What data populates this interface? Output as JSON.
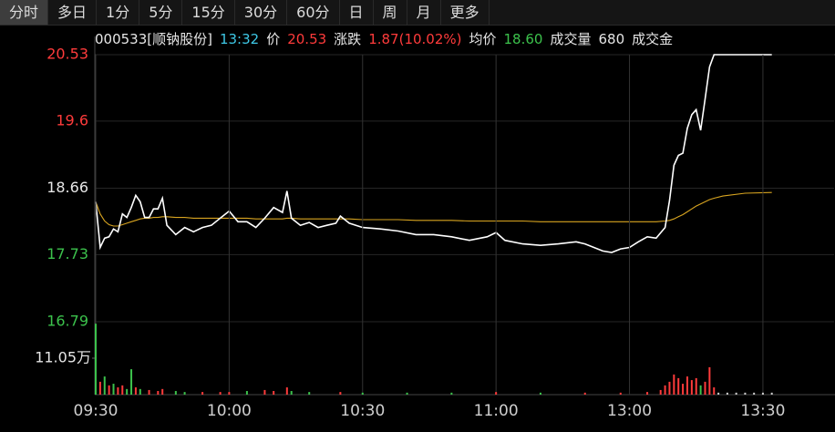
{
  "toolbar": {
    "tabs": [
      "分时",
      "多日",
      "1分",
      "5分",
      "15分",
      "30分",
      "60分",
      "日",
      "周",
      "月",
      "更多"
    ],
    "active": 0
  },
  "info": [
    {
      "text": "000533[顺钠股份]",
      "color": "#e6e6e6"
    },
    {
      "text": "13:32",
      "color": "#3ec8e6"
    },
    {
      "text": "价",
      "color": "#e6e6e6"
    },
    {
      "text": "20.53",
      "color": "#ff3b3b"
    },
    {
      "text": "涨跌",
      "color": "#e6e6e6"
    },
    {
      "text": "1.87(10.02%)",
      "color": "#ff3b3b"
    },
    {
      "text": "均价",
      "color": "#e6e6e6"
    },
    {
      "text": "18.60",
      "color": "#3cc24c"
    },
    {
      "text": "成交量",
      "color": "#e6e6e6"
    },
    {
      "text": "680",
      "color": "#e6e6e6"
    },
    {
      "text": "成交金",
      "color": "#e6e6e6"
    }
  ],
  "chart_data": [
    {
      "type": "line",
      "x": [
        0,
        1,
        2,
        3,
        4,
        5,
        6,
        7,
        8,
        9,
        10,
        11,
        12,
        13,
        14,
        15,
        16,
        18,
        20,
        22,
        24,
        26,
        28,
        30,
        32,
        34,
        36,
        38,
        40,
        42,
        43,
        44,
        46,
        48,
        50,
        52,
        54,
        55,
        57,
        60,
        64,
        68,
        72,
        76,
        80,
        84,
        88,
        90,
        92,
        96,
        100,
        104,
        108,
        110,
        112,
        114,
        116,
        118,
        120,
        122,
        124,
        126,
        128,
        129,
        130,
        131,
        132,
        133,
        134,
        135,
        136,
        137,
        138,
        139,
        141,
        146,
        152
      ],
      "series": [
        {
          "color": "#ffffff",
          "values": [
            18.47,
            17.83,
            17.96,
            17.98,
            18.09,
            18.05,
            18.3,
            18.25,
            18.39,
            18.56,
            18.47,
            18.25,
            18.25,
            18.37,
            18.37,
            18.52,
            18.14,
            18.01,
            18.11,
            18.05,
            18.11,
            18.14,
            18.24,
            18.34,
            18.19,
            18.19,
            18.11,
            18.24,
            18.39,
            18.32,
            18.62,
            18.24,
            18.14,
            18.18,
            18.11,
            18.14,
            18.17,
            18.27,
            18.17,
            18.11,
            18.09,
            18.06,
            18.01,
            18.01,
            17.98,
            17.93,
            17.98,
            18.04,
            17.93,
            17.88,
            17.86,
            17.88,
            17.91,
            17.88,
            17.83,
            17.78,
            17.76,
            17.81,
            17.83,
            17.91,
            17.98,
            17.96,
            18.11,
            18.49,
            18.98,
            19.12,
            19.15,
            19.5,
            19.69,
            19.76,
            19.47,
            19.91,
            20.36,
            20.53,
            20.53,
            20.53,
            20.53
          ]
        },
        {
          "color": "#d9a520",
          "values": [
            18.47,
            18.3,
            18.2,
            18.15,
            18.13,
            18.13,
            18.15,
            18.17,
            18.19,
            18.21,
            18.23,
            18.24,
            18.24,
            18.25,
            18.25,
            18.26,
            18.26,
            18.25,
            18.25,
            18.24,
            18.24,
            18.24,
            18.24,
            18.24,
            18.24,
            18.24,
            18.23,
            18.23,
            18.23,
            18.23,
            18.24,
            18.24,
            18.23,
            18.23,
            18.23,
            18.23,
            18.23,
            18.23,
            18.23,
            18.22,
            18.22,
            18.22,
            18.21,
            18.21,
            18.21,
            18.2,
            18.2,
            18.2,
            18.2,
            18.2,
            18.19,
            18.19,
            18.19,
            18.19,
            18.19,
            18.19,
            18.19,
            18.19,
            18.19,
            18.19,
            18.19,
            18.19,
            18.2,
            18.21,
            18.23,
            18.26,
            18.29,
            18.33,
            18.37,
            18.41,
            18.44,
            18.47,
            18.5,
            18.52,
            18.55,
            18.59,
            18.6
          ]
        }
      ],
      "xlim": [
        0,
        166
      ],
      "ylim": [
        16.79,
        20.53
      ],
      "yticks": [
        20.53,
        19.6,
        18.66,
        17.73,
        16.79
      ],
      "ytick_colors": [
        "#ff3b3b",
        "#ff3b3b",
        "#e6e6e6",
        "#3cc24c",
        "#3cc24c"
      ],
      "grid": true
    },
    {
      "type": "bar",
      "x": [
        0,
        1,
        2,
        3,
        4,
        5,
        6,
        7,
        8,
        9,
        10,
        12,
        14,
        15,
        18,
        20,
        24,
        28,
        30,
        34,
        38,
        40,
        43,
        44,
        48,
        55,
        60,
        70,
        80,
        90,
        100,
        110,
        118,
        124,
        127,
        128,
        129,
        130,
        131,
        132,
        133,
        134,
        135,
        136,
        137,
        138,
        139,
        140,
        142,
        144,
        146,
        148,
        150,
        152
      ],
      "values": [
        21.5,
        3.9,
        5.5,
        2.8,
        3.3,
        2.2,
        2.8,
        1.7,
        7.7,
        2.2,
        1.7,
        1.4,
        1.1,
        1.7,
        1.1,
        0.8,
        0.8,
        0.8,
        0.8,
        1.1,
        1.4,
        1.1,
        2.2,
        1.1,
        0.8,
        0.8,
        0.6,
        0.6,
        0.6,
        0.8,
        0.6,
        0.6,
        0.6,
        0.8,
        1.4,
        2.8,
        3.9,
        6.1,
        5.0,
        3.3,
        5.5,
        4.4,
        5.0,
        2.8,
        3.9,
        8.3,
        2.2,
        0.6,
        0.6,
        0.6,
        0.6,
        0.6,
        0.6,
        0.6
      ],
      "colors": [
        "#3cc24c",
        "#ff3b3b",
        "#3cc24c",
        "#ff3b3b",
        "#3cc24c",
        "#ff3b3b",
        "#ff3b3b",
        "#3cc24c",
        "#3cc24c",
        "#ff3b3b",
        "#3cc24c",
        "#ff3b3b",
        "#ff3b3b",
        "#ff3b3b",
        "#3cc24c",
        "#3cc24c",
        "#ff3b3b",
        "#ff3b3b",
        "#ff3b3b",
        "#3cc24c",
        "#ff3b3b",
        "#ff3b3b",
        "#ff3b3b",
        "#3cc24c",
        "#3cc24c",
        "#ff3b3b",
        "#3cc24c",
        "#3cc24c",
        "#3cc24c",
        "#ff3b3b",
        "#3cc24c",
        "#ff3b3b",
        "#ff3b3b",
        "#ff3b3b",
        "#ff3b3b",
        "#ff3b3b",
        "#ff3b3b",
        "#ff3b3b",
        "#ff3b3b",
        "#ff3b3b",
        "#ff3b3b",
        "#ff3b3b",
        "#ff3b3b",
        "#3cc24c",
        "#ff3b3b",
        "#ff3b3b",
        "#ff3b3b",
        "#cccccc",
        "#cccccc",
        "#cccccc",
        "#cccccc",
        "#cccccc",
        "#cccccc",
        "#cccccc"
      ],
      "xlim": [
        0,
        166
      ],
      "xticks": [
        {
          "value": 0,
          "label": "09:30"
        },
        {
          "value": 30,
          "label": "10:00"
        },
        {
          "value": 60,
          "label": "10:30"
        },
        {
          "value": 90,
          "label": "11:00"
        },
        {
          "value": 120,
          "label": "13:00"
        },
        {
          "value": 150,
          "label": "13:30"
        }
      ],
      "ylim": [
        0,
        22.1
      ],
      "yticks": [
        {
          "value": 11.05,
          "label": "11.05万"
        }
      ]
    }
  ]
}
